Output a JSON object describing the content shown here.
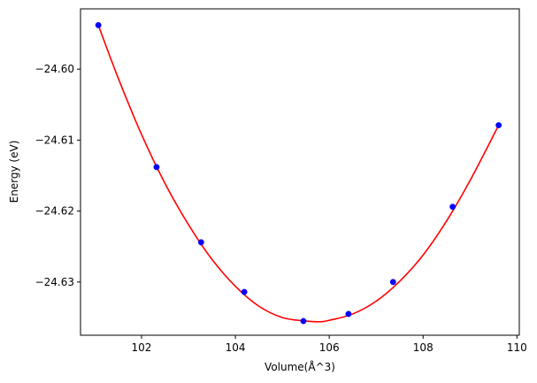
{
  "chart_data": {
    "type": "scatter",
    "title": "",
    "xlabel": "Volume(Å^3)",
    "ylabel": "Energy (eV)",
    "xlim": [
      100.7,
      110.05
    ],
    "ylim": [
      -24.6375,
      -24.5915
    ],
    "xticks": [
      102,
      104,
      106,
      108,
      110
    ],
    "yticks": [
      -24.63,
      -24.62,
      -24.61,
      -24.6
    ],
    "xtick_labels": [
      "102",
      "104",
      "106",
      "108",
      "110"
    ],
    "ytick_labels": [
      "−24.63",
      "−24.62",
      "−24.61",
      "−24.60"
    ],
    "grid": false,
    "series": [
      {
        "kind": "points",
        "color": "#0000ff",
        "x": [
          101.08,
          102.32,
          103.27,
          104.19,
          105.45,
          106.41,
          107.36,
          108.63,
          109.61
        ],
        "y": [
          -24.5938,
          -24.6138,
          -24.6244,
          -24.6314,
          -24.6355,
          -24.6345,
          -24.63,
          -24.6194,
          -24.6079
        ]
      },
      {
        "kind": "fit-curve",
        "color": "#ff0000",
        "x": [
          101.08,
          101.5,
          102.0,
          102.5,
          103.0,
          103.5,
          104.0,
          104.5,
          105.0,
          105.5,
          105.8,
          106.0,
          106.5,
          107.0,
          107.5,
          108.0,
          108.5,
          109.0,
          109.61
        ],
        "y": [
          -24.5938,
          -24.6012,
          -24.6092,
          -24.6161,
          -24.6219,
          -24.6268,
          -24.6306,
          -24.6334,
          -24.635,
          -24.6355,
          -24.6356,
          -24.6354,
          -24.6345,
          -24.6327,
          -24.6299,
          -24.6262,
          -24.6214,
          -24.6157,
          -24.6079
        ]
      }
    ]
  }
}
